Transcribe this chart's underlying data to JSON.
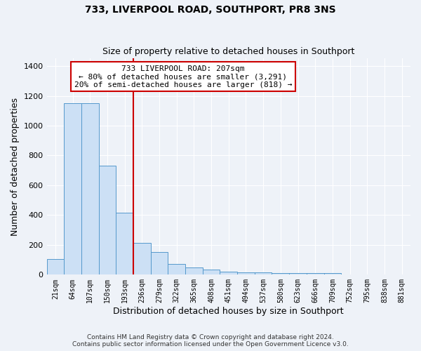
{
  "title": "733, LIVERPOOL ROAD, SOUTHPORT, PR8 3NS",
  "subtitle": "Size of property relative to detached houses in Southport",
  "xlabel": "Distribution of detached houses by size in Southport",
  "ylabel": "Number of detached properties",
  "bar_color": "#cce0f5",
  "bar_edge_color": "#5599cc",
  "background_color": "#eef2f8",
  "grid_color": "#ffffff",
  "annotation_text": "733 LIVERPOOL ROAD: 207sqm\n← 80% of detached houses are smaller (3,291)\n20% of semi-detached houses are larger (818) →",
  "annotation_box_color": "#ffffff",
  "annotation_box_edge_color": "#cc0000",
  "categories": [
    "21sqm",
    "64sqm",
    "107sqm",
    "150sqm",
    "193sqm",
    "236sqm",
    "279sqm",
    "322sqm",
    "365sqm",
    "408sqm",
    "451sqm",
    "494sqm",
    "537sqm",
    "580sqm",
    "623sqm",
    "666sqm",
    "709sqm",
    "752sqm",
    "795sqm",
    "838sqm",
    "881sqm"
  ],
  "values": [
    107,
    1150,
    1150,
    730,
    415,
    215,
    150,
    70,
    50,
    35,
    20,
    15,
    15,
    10,
    10,
    10,
    10,
    0,
    0,
    0,
    0
  ],
  "ylim": [
    0,
    1450
  ],
  "yticks": [
    0,
    200,
    400,
    600,
    800,
    1000,
    1200,
    1400
  ],
  "red_line_bar_index": 4,
  "footer": "Contains HM Land Registry data © Crown copyright and database right 2024.\nContains public sector information licensed under the Open Government Licence v3.0.",
  "figsize": [
    6.0,
    5.0
  ],
  "dpi": 100
}
